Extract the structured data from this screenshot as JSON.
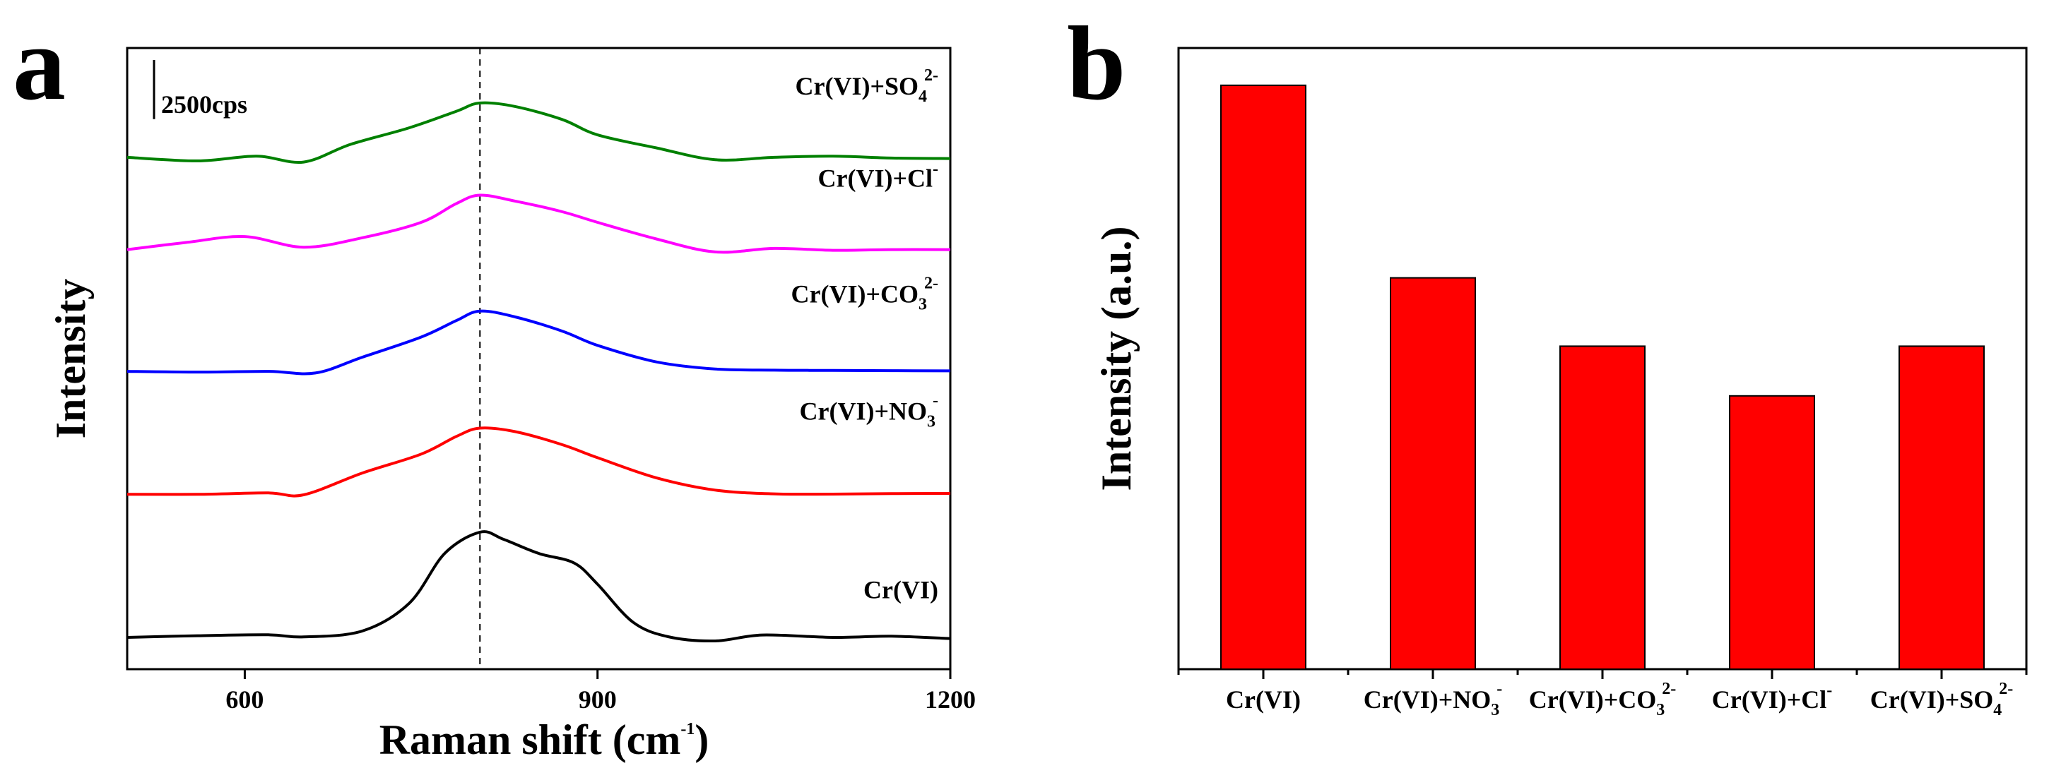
{
  "panels": {
    "a": {
      "letter": "a"
    },
    "b": {
      "letter": "b"
    }
  },
  "chart_data": [
    {
      "type": "line",
      "panel": "a",
      "title": "",
      "xlabel": {
        "main": "Raman shift (cm",
        "sup": "-1",
        "close": ")"
      },
      "ylabel": "Intensity",
      "xlim": [
        500,
        1200
      ],
      "xticks": [
        600,
        900,
        1200
      ],
      "x_tick_labels": [
        "600",
        "900",
        "1200"
      ],
      "yticks_shown": false,
      "reference_line": {
        "x": 800,
        "style": "dashed"
      },
      "scale_bar": {
        "label": "2500cps",
        "value": 2500
      },
      "stacked_offset_cps": 5200,
      "series": [
        {
          "name": "Cr(VI)",
          "label": {
            "base": "Cr(VI)"
          },
          "color": "#000000",
          "baseline_cps": 0,
          "x": [
            500,
            560,
            620,
            650,
            700,
            740,
            770,
            800,
            820,
            850,
            880,
            900,
            930,
            960,
            1000,
            1040,
            1100,
            1150,
            1200
          ],
          "y": [
            150,
            220,
            260,
            170,
            420,
            1600,
            3700,
            4600,
            4300,
            3700,
            3300,
            2400,
            800,
            180,
            0,
            250,
            150,
            200,
            100
          ]
        },
        {
          "name": "Cr(VI)+NO3-",
          "label": {
            "base": "Cr(VI)+NO",
            "sub": "3",
            "sup": "-"
          },
          "color": "#ff0000",
          "baseline_cps": 6200,
          "x": [
            500,
            560,
            620,
            650,
            700,
            750,
            780,
            800,
            830,
            870,
            900,
            950,
            1000,
            1050,
            1100,
            1150,
            1200
          ],
          "y": [
            6200,
            6200,
            6260,
            6180,
            7100,
            7900,
            8650,
            9000,
            8850,
            8300,
            7750,
            6900,
            6380,
            6220,
            6210,
            6230,
            6240
          ]
        },
        {
          "name": "Cr(VI)+CO3 2-",
          "label": {
            "base": "Cr(VI)+CO",
            "sub": "3",
            "sup": "2-"
          },
          "color": "#0000ff",
          "baseline_cps": 11400,
          "x": [
            500,
            560,
            620,
            660,
            700,
            750,
            780,
            800,
            830,
            870,
            900,
            950,
            1000,
            1050,
            1100,
            1150,
            1200
          ],
          "y": [
            11400,
            11370,
            11400,
            11330,
            12000,
            12850,
            13550,
            13950,
            13700,
            13100,
            12500,
            11800,
            11500,
            11450,
            11440,
            11430,
            11420
          ]
        },
        {
          "name": "Cr(VI)+Cl-",
          "label": {
            "base": "Cr(VI)+Cl",
            "sup": "-"
          },
          "color": "#ff00ff",
          "baseline_cps": 16600,
          "x": [
            500,
            550,
            600,
            650,
            700,
            750,
            780,
            800,
            830,
            870,
            900,
            950,
            1000,
            1050,
            1100,
            1150,
            1200
          ],
          "y": [
            16550,
            16850,
            17100,
            16650,
            17050,
            17700,
            18500,
            18850,
            18600,
            18150,
            17700,
            17000,
            16450,
            16600,
            16520,
            16550,
            16550
          ]
        },
        {
          "name": "Cr(VI)+SO4 2-",
          "label": {
            "base": "Cr(VI)+SO",
            "sub": "4",
            "sup": "2-"
          },
          "color": "#008000",
          "baseline_cps": 20400,
          "x": [
            500,
            560,
            610,
            650,
            690,
            740,
            780,
            800,
            830,
            870,
            900,
            950,
            1000,
            1050,
            1100,
            1150,
            1200
          ],
          "y": [
            20450,
            20300,
            20500,
            20250,
            21000,
            21700,
            22400,
            22750,
            22600,
            22050,
            21400,
            20850,
            20350,
            20450,
            20500,
            20420,
            20400
          ]
        }
      ]
    },
    {
      "type": "bar",
      "panel": "b",
      "title": "",
      "xlabel": "",
      "ylabel": "Intensity (a.u.)",
      "ylim": [
        0,
        100
      ],
      "yticks_shown": false,
      "bar_color": "#ff0000",
      "categories": [
        "Cr(VI)",
        "Cr(VI)+NO3-",
        "Cr(VI)+CO3 2-",
        "Cr(VI)+Cl-",
        "Cr(VI)+SO4 2-"
      ],
      "category_labels": [
        {
          "base": "Cr(VI)"
        },
        {
          "base": "Cr(VI)+NO",
          "sub": "3",
          "sup": "-"
        },
        {
          "base": "Cr(VI)+CO",
          "sub": "3",
          "sup": "2-"
        },
        {
          "base": "Cr(VI)+Cl",
          "sup": "-"
        },
        {
          "base": "Cr(VI)+SO",
          "sub": "4",
          "sup": "2-"
        }
      ],
      "values": [
        94,
        63,
        52,
        44,
        52
      ]
    }
  ]
}
